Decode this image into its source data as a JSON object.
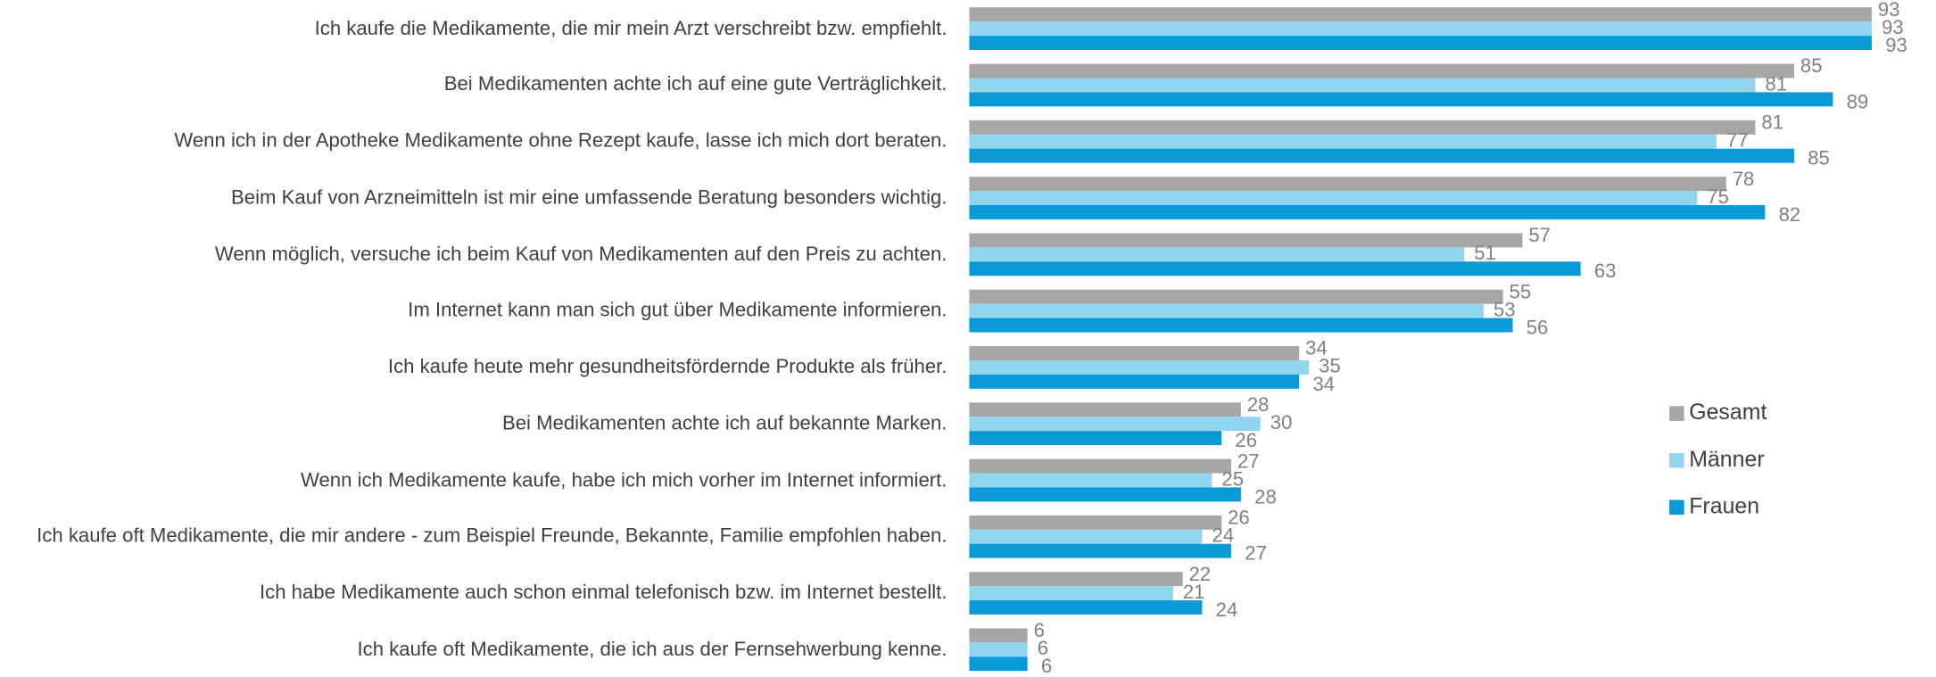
{
  "chart_data": {
    "type": "bar",
    "orientation": "horizontal",
    "categories": [
      "Ich kaufe die Medikamente, die mir mein Arzt verschreibt bzw. empfiehlt.",
      "Bei Medikamenten achte ich auf eine gute Verträglichkeit.",
      "Wenn ich in der Apotheke Medikamente ohne Rezept kaufe, lasse ich mich dort beraten.",
      "Beim Kauf von Arzneimitteln ist mir eine umfassende Beratung besonders wichtig.",
      "Wenn möglich, versuche ich beim Kauf von Medikamenten auf den Preis zu achten.",
      "Im Internet kann man sich gut über Medikamente informieren.",
      "Ich kaufe heute mehr gesundheitsfördernde Produkte als früher.",
      "Bei Medikamenten achte ich auf bekannte Marken.",
      "Wenn ich Medikamente kaufe, habe ich mich vorher im Internet informiert.",
      "Ich kaufe oft Medikamente, die mir andere - zum Beispiel Freunde, Bekannte, Familie empfohlen haben.",
      "Ich habe Medikamente auch schon einmal telefonisch bzw. im Internet bestellt.",
      "Ich kaufe oft Medikamente, die ich aus der Fernsehwerbung kenne."
    ],
    "series": [
      {
        "name": "Gesamt",
        "color": "#a6a6a6",
        "values": [
          93,
          85,
          81,
          78,
          57,
          55,
          34,
          28,
          27,
          26,
          22,
          6
        ]
      },
      {
        "name": "Männer",
        "color": "#92d5f0",
        "values": [
          93,
          81,
          77,
          75,
          51,
          53,
          35,
          30,
          25,
          24,
          21,
          6
        ]
      },
      {
        "name": "Frauen",
        "color": "#0a9ad8",
        "values": [
          93,
          89,
          85,
          82,
          63,
          56,
          34,
          26,
          28,
          27,
          24,
          6
        ]
      }
    ],
    "legend": "right"
  }
}
